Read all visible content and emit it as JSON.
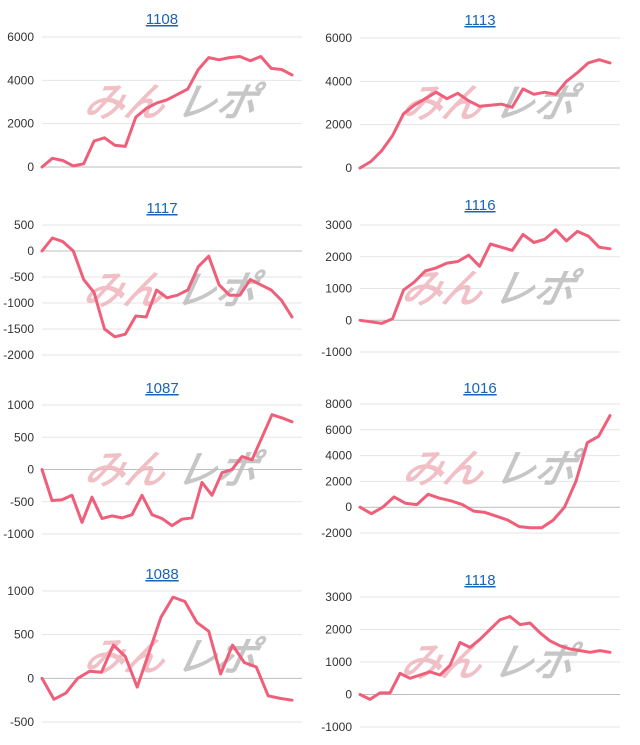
{
  "watermark": {
    "left": "みん",
    "right": "レポ",
    "color_left": "#efb5bd",
    "color_right": "#bdbdbd"
  },
  "line_color": "#ef5f7a",
  "title_color": "#1a64b5",
  "chart_data": [
    {
      "type": "line",
      "title": "1108",
      "ylim": [
        0,
        6000
      ],
      "yticks": [
        0,
        2000,
        4000,
        6000
      ],
      "grid": true,
      "series": [
        {
          "values": [
            0,
            400,
            300,
            50,
            150,
            1200,
            1350,
            1000,
            950,
            2300,
            2700,
            2950,
            3100,
            3350,
            3600,
            4500,
            5050,
            4950,
            5050,
            5100,
            4900,
            5100,
            4550,
            4500,
            4250
          ]
        }
      ]
    },
    {
      "type": "line",
      "title": "1113",
      "ylim": [
        0,
        6000
      ],
      "yticks": [
        0,
        2000,
        4000,
        6000
      ],
      "grid": true,
      "series": [
        {
          "values": [
            0,
            300,
            800,
            1500,
            2500,
            2900,
            3200,
            3500,
            3200,
            3450,
            3100,
            2850,
            2900,
            2950,
            2800,
            3650,
            3400,
            3500,
            3400,
            4000,
            4400,
            4850,
            5000,
            4850
          ]
        }
      ]
    },
    {
      "type": "line",
      "title": "1117",
      "ylim": [
        -2000,
        500
      ],
      "yticks": [
        -2000,
        -1500,
        -1000,
        -500,
        0,
        500
      ],
      "grid": true,
      "series": [
        {
          "values": [
            0,
            250,
            180,
            0,
            -550,
            -800,
            -1500,
            -1650,
            -1600,
            -1250,
            -1270,
            -750,
            -900,
            -850,
            -750,
            -300,
            -100,
            -650,
            -850,
            -850,
            -550,
            -650,
            -750,
            -950,
            -1270
          ]
        }
      ]
    },
    {
      "type": "line",
      "title": "1116",
      "ylim": [
        -1000,
        3000
      ],
      "yticks": [
        -1000,
        0,
        1000,
        2000,
        3000
      ],
      "grid": true,
      "series": [
        {
          "values": [
            0,
            -50,
            -100,
            50,
            950,
            1200,
            1550,
            1650,
            1800,
            1850,
            2050,
            1700,
            2400,
            2300,
            2200,
            2700,
            2450,
            2550,
            2850,
            2500,
            2800,
            2650,
            2300,
            2250
          ]
        }
      ]
    },
    {
      "type": "line",
      "title": "1087",
      "ylim": [
        -1000,
        1000
      ],
      "yticks": [
        -1000,
        -500,
        0,
        500,
        1000
      ],
      "grid": true,
      "series": [
        {
          "values": [
            0,
            -480,
            -470,
            -400,
            -820,
            -430,
            -760,
            -720,
            -750,
            -700,
            -400,
            -700,
            -760,
            -870,
            -770,
            -750,
            -200,
            -400,
            -50,
            0,
            200,
            150,
            500,
            850,
            800,
            740
          ]
        }
      ]
    },
    {
      "type": "line",
      "title": "1016",
      "ylim": [
        -2000,
        8000
      ],
      "yticks": [
        -2000,
        0,
        2000,
        4000,
        6000,
        8000
      ],
      "grid": true,
      "series": [
        {
          "values": [
            0,
            -500,
            0,
            800,
            300,
            200,
            1000,
            700,
            500,
            200,
            -300,
            -400,
            -700,
            -1000,
            -1500,
            -1600,
            -1600,
            -1000,
            0,
            2000,
            5000,
            5500,
            7100
          ]
        }
      ]
    },
    {
      "type": "line",
      "title": "1088",
      "ylim": [
        -500,
        1000
      ],
      "yticks": [
        -500,
        0,
        500,
        1000
      ],
      "grid": true,
      "series": [
        {
          "values": [
            0,
            -240,
            -170,
            0,
            80,
            70,
            380,
            250,
            -100,
            300,
            700,
            930,
            880,
            640,
            540,
            50,
            380,
            180,
            130,
            -200,
            -230,
            -250
          ]
        }
      ]
    },
    {
      "type": "line",
      "title": "1118",
      "ylim": [
        -1000,
        3000
      ],
      "yticks": [
        -1000,
        0,
        1000,
        2000,
        3000
      ],
      "grid": true,
      "series": [
        {
          "values": [
            0,
            -150,
            50,
            50,
            650,
            500,
            600,
            700,
            600,
            900,
            1600,
            1450,
            1700,
            2000,
            2300,
            2400,
            2150,
            2200,
            1900,
            1650,
            1500,
            1400,
            1350,
            1300,
            1350,
            1300
          ]
        }
      ]
    }
  ]
}
